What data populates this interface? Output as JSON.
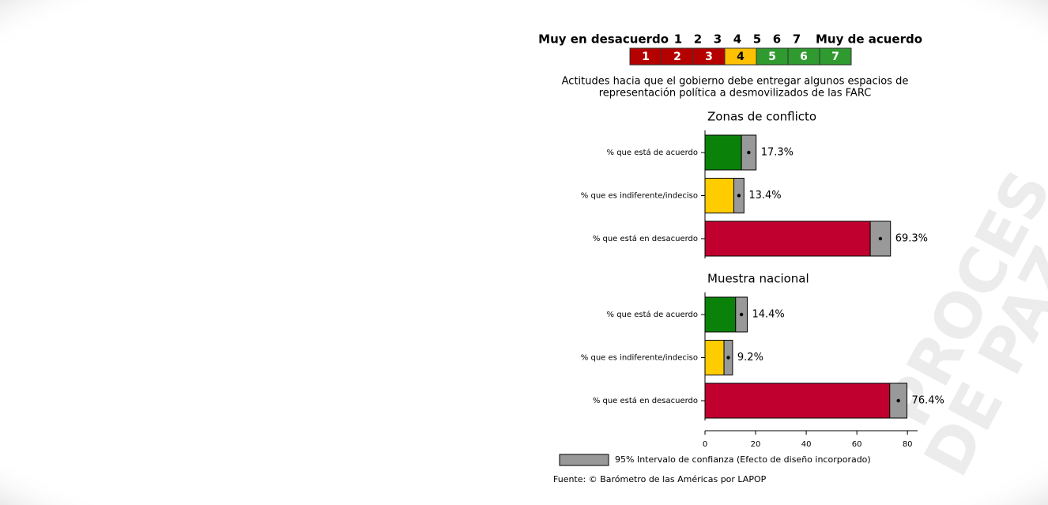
{
  "scale_legend": {
    "left": "Muy en desacuerdo",
    "right": "Muy de acuerdo",
    "numbers": [
      "1",
      "2",
      "3",
      "4",
      "5",
      "6",
      "7"
    ],
    "colors": [
      "#b50000",
      "#b50000",
      "#b50000",
      "#ffc000",
      "#2f9a2f",
      "#2f9a2f",
      "#2f9a2f"
    ]
  },
  "title": [
    "Actitudes hacia que el gobierno debe entregar algunos espacios de",
    "representación política a desmovilizados de las FARC"
  ],
  "watermark": [
    "PROCES",
    "DE PAZ"
  ],
  "chart_data": [
    {
      "type": "bar",
      "title": "Zonas de conflicto",
      "categories": [
        "% que está de acuerdo",
        "% que es indiferente/indeciso",
        "% que está en desacuerdo"
      ],
      "values": [
        17.3,
        13.4,
        69.3
      ],
      "errors": [
        2.9,
        2.0,
        4.0
      ],
      "value_labels": [
        "17.3%",
        "13.4%",
        "69.3%"
      ],
      "colors": [
        "#0a820a",
        "#ffcc00",
        "#c0002f"
      ],
      "error_color": "#999999",
      "xlim": [
        0,
        84
      ]
    },
    {
      "type": "bar",
      "title": "Muestra nacional",
      "categories": [
        "% que está de acuerdo",
        "% que es indiferente/indeciso",
        "% que está en desacuerdo"
      ],
      "values": [
        14.4,
        9.2,
        76.4
      ],
      "errors": [
        2.3,
        1.7,
        3.4
      ],
      "value_labels": [
        "14.4%",
        "9.2%",
        "76.4%"
      ],
      "colors": [
        "#0a820a",
        "#ffcc00",
        "#c0002f"
      ],
      "error_color": "#999999",
      "xlim": [
        0,
        84
      ],
      "xticks": [
        0,
        20,
        40,
        60,
        80
      ]
    }
  ],
  "legend": "95% Intervalo de confianza (Efecto de diseño incorporado)",
  "source": "Fuente: © Barómetro de las Américas por LAPOP"
}
